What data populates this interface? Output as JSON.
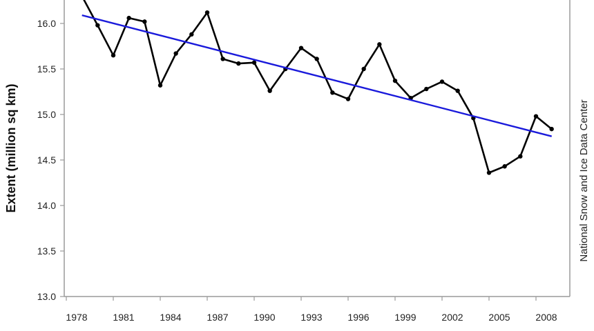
{
  "chart_data": {
    "type": "line",
    "title": "",
    "xlabel": "",
    "ylabel": "Extent (million sq km)",
    "xlim": [
      1978,
      2010
    ],
    "ylim": [
      13.0,
      16.3
    ],
    "x_ticks": [
      1978,
      1981,
      1984,
      1987,
      1990,
      1993,
      1996,
      1999,
      2002,
      2005,
      2008
    ],
    "y_ticks": [
      "13.0",
      "13.5",
      "14.0",
      "14.5",
      "15.0",
      "15.5",
      "16.0"
    ],
    "grid": false,
    "credit": "National Snow and Ice Data Center",
    "series": [
      {
        "color": "#000000",
        "style": "line-with-markers",
        "x": [
          1979,
          1980,
          1981,
          1982,
          1983,
          1984,
          1985,
          1986,
          1987,
          1988,
          1989,
          1990,
          1991,
          1992,
          1993,
          1994,
          1995,
          1996,
          1997,
          1998,
          1999,
          2000,
          2001,
          2002,
          2003,
          2004,
          2005,
          2006,
          2007,
          2008,
          2009
        ],
        "values": [
          16.3,
          15.98,
          15.65,
          16.06,
          16.02,
          15.32,
          15.67,
          15.88,
          16.12,
          15.61,
          15.56,
          15.57,
          15.26,
          15.5,
          15.73,
          15.61,
          15.24,
          15.17,
          15.5,
          15.77,
          15.37,
          15.18,
          15.28,
          15.36,
          15.26,
          14.96,
          14.36,
          14.43,
          14.54,
          14.98,
          14.84
        ]
      },
      {
        "color": "#1a1adb",
        "style": "trend-line",
        "x": [
          1979,
          2009
        ],
        "values": [
          16.09,
          14.76
        ]
      }
    ]
  }
}
